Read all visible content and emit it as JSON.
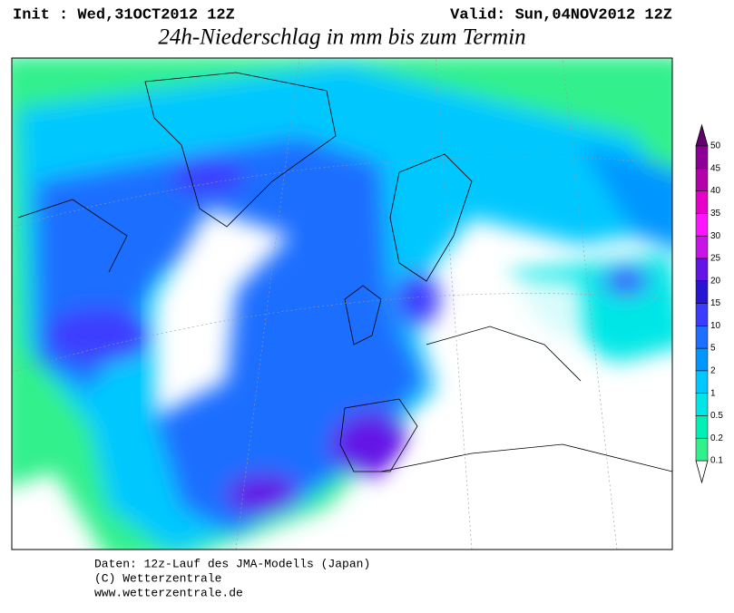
{
  "header": {
    "init": "Init : Wed,31OCT2012 12Z",
    "valid": "Valid: Sun,04NOV2012 12Z",
    "title": "24h-Niederschlag in mm bis zum Termin"
  },
  "colorbar": {
    "levels": [
      0.1,
      0.2,
      0.5,
      1,
      2,
      5,
      10,
      15,
      20,
      25,
      30,
      35,
      40,
      45,
      50
    ],
    "colors": [
      "#32f08c",
      "#00f0b4",
      "#00e6e6",
      "#00c8ff",
      "#0096ff",
      "#1e6eff",
      "#3c3cff",
      "#2814d2",
      "#6414e6",
      "#c814e6",
      "#ff14ff",
      "#e600c8",
      "#b400aa",
      "#8c0096"
    ]
  },
  "footer": {
    "lines": [
      "Daten: 12z-Lauf des JMA-Modells (Japan)",
      "(C) Wetterzentrale",
      "www.wetterzentrale.de"
    ]
  }
}
